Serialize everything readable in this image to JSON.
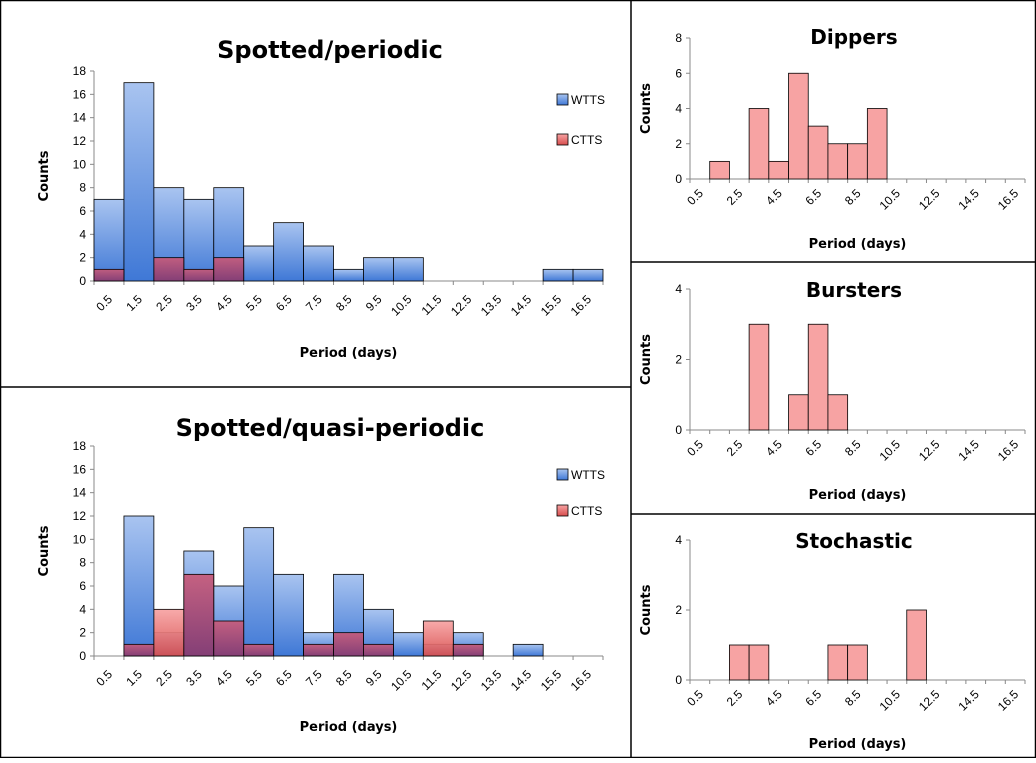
{
  "colors": {
    "wtts_top": "#a9c4f0",
    "wtts_bottom": "#3f78d6",
    "ctts_top": "#f7a3a3",
    "ctts_bottom": "#d84e4e",
    "overlap_top": "#c95a78",
    "overlap_bottom": "#8a3a6e",
    "bar_stroke": "#000000",
    "frame": "#000000",
    "axis": "#888888"
  },
  "chart_data": [
    {
      "id": "spotted-periodic",
      "type": "bar",
      "title": "Spotted/periodic",
      "xlabel": "Period (days)",
      "ylabel": "Counts",
      "categories": [
        "0.5",
        "1.5",
        "2.5",
        "3.5",
        "4.5",
        "5.5",
        "6.5",
        "7.5",
        "8.5",
        "9.5",
        "10.5",
        "11.5",
        "12.5",
        "13.5",
        "14.5",
        "15.5",
        "16.5"
      ],
      "ylim": [
        0,
        18
      ],
      "yticks": [
        0,
        2,
        4,
        6,
        8,
        10,
        12,
        14,
        16,
        18
      ],
      "legend": "right",
      "series": [
        {
          "name": "WTTS",
          "values": [
            7,
            17,
            8,
            7,
            8,
            3,
            5,
            3,
            1,
            2,
            2,
            0,
            0,
            0,
            0,
            1,
            1
          ]
        },
        {
          "name": "CTTS",
          "values": [
            1,
            0,
            2,
            1,
            2,
            0,
            0,
            0,
            0,
            0,
            0,
            0,
            0,
            0,
            0,
            0,
            0
          ]
        }
      ]
    },
    {
      "id": "spotted-quasi-periodic",
      "type": "bar",
      "title": "Spotted/quasi-periodic",
      "xlabel": "Period (days)",
      "ylabel": "Counts",
      "categories": [
        "0.5",
        "1.5",
        "2.5",
        "3.5",
        "4.5",
        "5.5",
        "6.5",
        "7.5",
        "8.5",
        "9.5",
        "10.5",
        "11.5",
        "12.5",
        "13.5",
        "14.5",
        "15.5",
        "16.5"
      ],
      "ylim": [
        0,
        18
      ],
      "yticks": [
        0,
        2,
        4,
        6,
        8,
        10,
        12,
        14,
        16,
        18
      ],
      "legend": "right",
      "series": [
        {
          "name": "WTTS",
          "values": [
            0,
            12,
            2,
            9,
            6,
            11,
            7,
            2,
            7,
            4,
            2,
            1,
            2,
            0,
            1,
            0,
            0
          ]
        },
        {
          "name": "CTTS",
          "values": [
            0,
            1,
            4,
            7,
            3,
            1,
            0,
            1,
            2,
            1,
            0,
            3,
            1,
            0,
            0,
            0,
            0
          ]
        }
      ]
    },
    {
      "id": "dippers",
      "type": "bar",
      "title": "Dippers",
      "xlabel": "Period (days)",
      "ylabel": "Counts",
      "categories": [
        "0.5",
        "1.5",
        "2.5",
        "3.5",
        "4.5",
        "5.5",
        "6.5",
        "7.5",
        "8.5",
        "9.5",
        "10.5",
        "11.5",
        "12.5",
        "13.5",
        "14.5",
        "15.5",
        "16.5"
      ],
      "xtick_labels": [
        "0.5",
        "2.5",
        "4.5",
        "6.5",
        "8.5",
        "10.5",
        "12.5",
        "14.5",
        "16.5"
      ],
      "ylim": [
        0,
        8
      ],
      "yticks": [
        0,
        2,
        4,
        6,
        8
      ],
      "series": [
        {
          "name": "CTTS",
          "values": [
            0,
            1,
            0,
            4,
            1,
            6,
            3,
            2,
            2,
            4,
            0,
            0,
            0,
            0,
            0,
            0,
            0
          ]
        }
      ]
    },
    {
      "id": "bursters",
      "type": "bar",
      "title": "Bursters",
      "xlabel": "Period (days)",
      "ylabel": "Counts",
      "categories": [
        "0.5",
        "1.5",
        "2.5",
        "3.5",
        "4.5",
        "5.5",
        "6.5",
        "7.5",
        "8.5",
        "9.5",
        "10.5",
        "11.5",
        "12.5",
        "13.5",
        "14.5",
        "15.5",
        "16.5"
      ],
      "xtick_labels": [
        "0.5",
        "2.5",
        "4.5",
        "6.5",
        "8.5",
        "10.5",
        "12.5",
        "14.5",
        "16.5"
      ],
      "ylim": [
        0,
        4
      ],
      "yticks": [
        0,
        2,
        4
      ],
      "series": [
        {
          "name": "CTTS",
          "values": [
            0,
            0,
            0,
            3,
            0,
            1,
            3,
            1,
            0,
            0,
            0,
            0,
            0,
            0,
            0,
            0,
            0
          ]
        }
      ]
    },
    {
      "id": "stochastic",
      "type": "bar",
      "title": "Stochastic",
      "xlabel": "Period (days)",
      "ylabel": "Counts",
      "categories": [
        "0.5",
        "1.5",
        "2.5",
        "3.5",
        "4.5",
        "5.5",
        "6.5",
        "7.5",
        "8.5",
        "9.5",
        "10.5",
        "11.5",
        "12.5",
        "13.5",
        "14.5",
        "15.5",
        "16.5"
      ],
      "xtick_labels": [
        "0.5",
        "2.5",
        "4.5",
        "6.5",
        "8.5",
        "10.5",
        "12.5",
        "14.5",
        "16.5"
      ],
      "ylim": [
        0,
        4
      ],
      "yticks": [
        0,
        2,
        4
      ],
      "series": [
        {
          "name": "CTTS",
          "values": [
            0,
            0,
            1,
            1,
            0,
            0,
            0,
            1,
            1,
            0,
            0,
            2,
            0,
            0,
            0,
            0,
            0
          ]
        }
      ]
    }
  ]
}
